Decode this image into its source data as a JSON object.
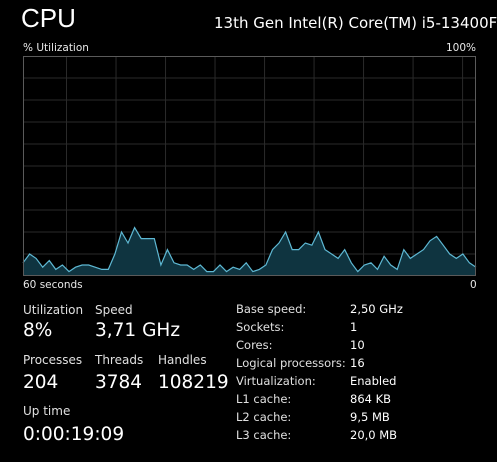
{
  "header": {
    "title": "CPU",
    "cpu_name": "13th Gen Intel(R) Core(TM) i5-13400F"
  },
  "graph": {
    "y_label": "% Utilization",
    "y_max_label": "100%",
    "x_left_label": "60 seconds",
    "x_right_label": "0",
    "line_color": "#5eb8d3",
    "fill_color": "#0f3440",
    "grid_color": "#2a2a2a",
    "border_color": "#5a5a5a",
    "utilization_history": [
      6,
      10,
      8,
      4,
      7,
      3,
      5,
      2,
      4,
      5,
      5,
      4,
      3,
      3,
      10,
      20,
      15,
      22,
      17,
      17,
      17,
      5,
      12,
      6,
      5,
      5,
      3,
      5,
      2,
      2,
      5,
      2,
      4,
      3,
      6,
      2,
      3,
      5,
      12,
      15,
      20,
      12,
      12,
      15,
      14,
      20,
      12,
      10,
      8,
      12,
      6,
      2,
      5,
      6,
      3,
      9,
      5,
      3,
      12,
      8,
      10,
      12,
      16,
      18,
      14,
      10,
      8,
      10,
      6,
      4
    ]
  },
  "stats": {
    "utilization": {
      "label": "Utilization",
      "value": "8%"
    },
    "speed": {
      "label": "Speed",
      "value": "3,71 GHz"
    },
    "processes": {
      "label": "Processes",
      "value": "204"
    },
    "threads": {
      "label": "Threads",
      "value": "3784"
    },
    "handles": {
      "label": "Handles",
      "value": "108219"
    },
    "uptime": {
      "label": "Up time",
      "value": "0:00:19:09"
    }
  },
  "specs": [
    {
      "label": "Base speed:",
      "value": "2,50 GHz"
    },
    {
      "label": "Sockets:",
      "value": "1"
    },
    {
      "label": "Cores:",
      "value": "10"
    },
    {
      "label": "Logical processors:",
      "value": "16"
    },
    {
      "label": "Virtualization:",
      "value": "Enabled"
    },
    {
      "label": "L1 cache:",
      "value": "864 KB"
    },
    {
      "label": "L2 cache:",
      "value": "9,5 MB"
    },
    {
      "label": "L3 cache:",
      "value": "20,0 MB"
    }
  ]
}
